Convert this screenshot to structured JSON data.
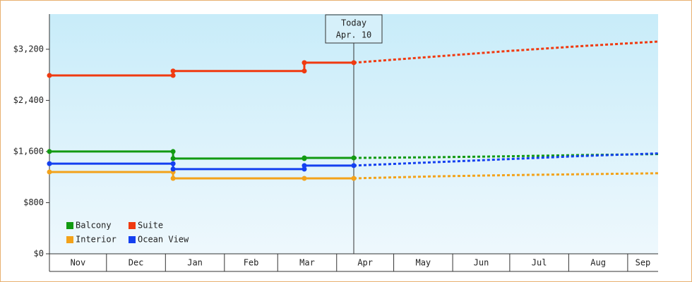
{
  "chart_data": {
    "type": "step-line",
    "xlim": [
      0,
      320
    ],
    "xticks": [
      {
        "value": 0,
        "label": "Nov"
      },
      {
        "value": 30,
        "label": "Dec"
      },
      {
        "value": 61,
        "label": "Jan"
      },
      {
        "value": 92,
        "label": "Feb"
      },
      {
        "value": 120,
        "label": "Mar"
      },
      {
        "value": 151,
        "label": "Apr"
      },
      {
        "value": 181,
        "label": "May"
      },
      {
        "value": 212,
        "label": "Jun"
      },
      {
        "value": 242,
        "label": "Jul"
      },
      {
        "value": 273,
        "label": "Aug"
      },
      {
        "value": 304,
        "label": "Sep"
      }
    ],
    "ylim": [
      0,
      3750
    ],
    "yticks": [
      {
        "value": 0,
        "label": "$0"
      },
      {
        "value": 800,
        "label": "$800"
      },
      {
        "value": 1600,
        "label": "$1,600"
      },
      {
        "value": 2400,
        "label": "$2,400"
      },
      {
        "value": 3200,
        "label": "$3,200"
      }
    ],
    "annotation": {
      "x": 160,
      "lines": [
        "Today",
        "Apr. 10"
      ]
    },
    "legend": "bottom-left",
    "series": [
      {
        "name": "Balcony",
        "color": "#129a12",
        "x": [
          0,
          65,
          65,
          134,
          134,
          160
        ],
        "values": [
          1600,
          1600,
          1490,
          1490,
          1500,
          1500
        ],
        "forecast": {
          "x": [
            160,
            200,
            240,
            280,
            320
          ],
          "values": [
            1500,
            1510,
            1525,
            1545,
            1560
          ]
        }
      },
      {
        "name": "Suite",
        "color": "#f03a10",
        "x": [
          0,
          65,
          65,
          134,
          134,
          160
        ],
        "values": [
          2790,
          2790,
          2860,
          2860,
          2990,
          2990
        ],
        "forecast": {
          "x": [
            160,
            200,
            240,
            280,
            320
          ],
          "values": [
            2990,
            3080,
            3170,
            3250,
            3320
          ]
        }
      },
      {
        "name": "Interior",
        "color": "#f3a21a",
        "x": [
          0,
          65,
          65,
          134,
          160
        ],
        "values": [
          1280,
          1280,
          1180,
          1180,
          1180
        ],
        "forecast": {
          "x": [
            160,
            200,
            240,
            280,
            320
          ],
          "values": [
            1180,
            1210,
            1230,
            1245,
            1260
          ]
        }
      },
      {
        "name": "Ocean View",
        "color": "#1440f0",
        "x": [
          0,
          65,
          65,
          134,
          134,
          160
        ],
        "values": [
          1410,
          1410,
          1325,
          1325,
          1380,
          1380
        ],
        "forecast": {
          "x": [
            160,
            200,
            240,
            280,
            320
          ],
          "values": [
            1380,
            1430,
            1480,
            1530,
            1570
          ]
        }
      }
    ]
  }
}
